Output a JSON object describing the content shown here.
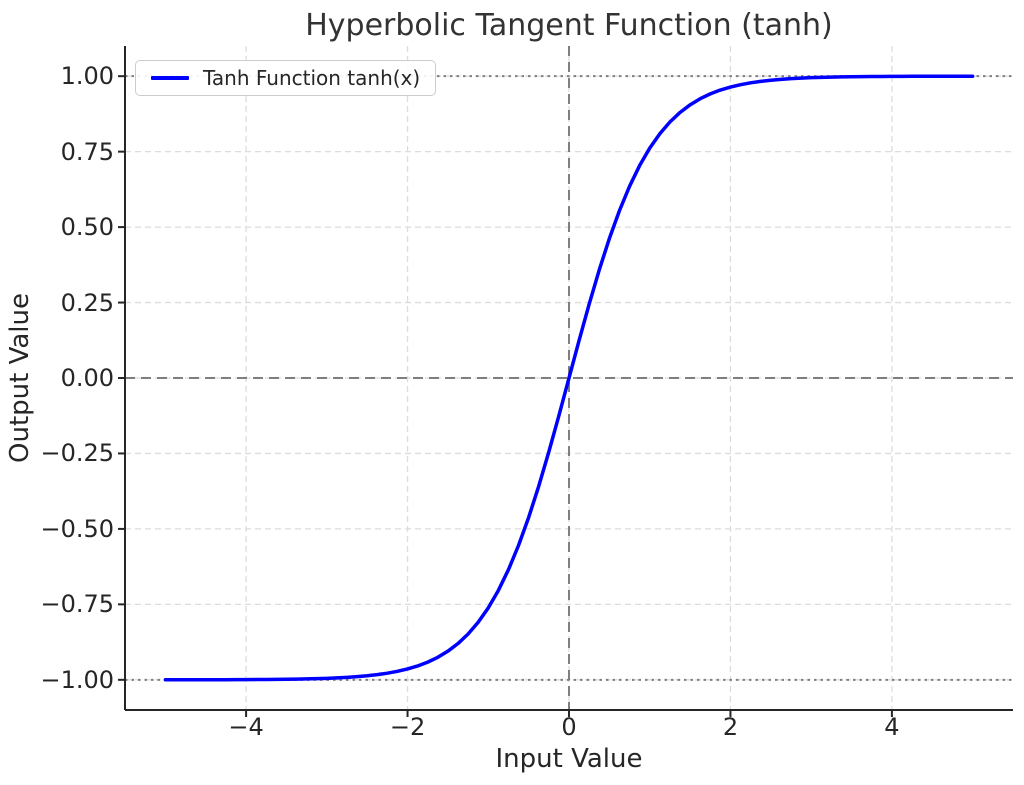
{
  "chart_data": {
    "type": "line",
    "title": "Hyperbolic Tangent Function (tanh)",
    "xlabel": "Input Value",
    "ylabel": "Output Value",
    "xlim": [
      -5.5,
      5.5
    ],
    "ylim": [
      -1.1,
      1.1
    ],
    "grid": true,
    "grid_style": "dashed",
    "legend_position": "upper left",
    "xticks": [
      {
        "value": -4,
        "label": "−4"
      },
      {
        "value": -2,
        "label": "−2"
      },
      {
        "value": 0,
        "label": "0"
      },
      {
        "value": 2,
        "label": "2"
      },
      {
        "value": 4,
        "label": "4"
      }
    ],
    "yticks": [
      {
        "value": 1,
        "label": "1.00"
      },
      {
        "value": 0.75,
        "label": "0.75"
      },
      {
        "value": 0.5,
        "label": "0.50"
      },
      {
        "value": 0.25,
        "label": "0.25"
      },
      {
        "value": 0,
        "label": "0.00"
      },
      {
        "value": -0.25,
        "label": "−0.25"
      },
      {
        "value": -0.5,
        "label": "−0.50"
      },
      {
        "value": -0.75,
        "label": "−0.75"
      },
      {
        "value": -1,
        "label": "−1.00"
      }
    ],
    "reference_lines": [
      {
        "orientation": "vertical",
        "value": 0,
        "style": "dashed",
        "color": "#7f7f7f"
      },
      {
        "orientation": "horizontal",
        "value": 0,
        "style": "dashed",
        "color": "#7f7f7f"
      },
      {
        "orientation": "horizontal",
        "value": 1,
        "style": "dotted",
        "color": "#7f7f7f"
      },
      {
        "orientation": "horizontal",
        "value": -1,
        "style": "dotted",
        "color": "#7f7f7f"
      }
    ],
    "series": [
      {
        "name": "Tanh Function tanh(x)",
        "color": "#0000ff",
        "x": [
          -5,
          -4.875,
          -4.75,
          -4.625,
          -4.5,
          -4.375,
          -4.25,
          -4.125,
          -4,
          -3.875,
          -3.75,
          -3.625,
          -3.5,
          -3.375,
          -3.25,
          -3.125,
          -3,
          -2.875,
          -2.75,
          -2.625,
          -2.5,
          -2.375,
          -2.25,
          -2.125,
          -2,
          -1.875,
          -1.75,
          -1.625,
          -1.5,
          -1.375,
          -1.25,
          -1.125,
          -1,
          -0.875,
          -0.75,
          -0.625,
          -0.5,
          -0.375,
          -0.25,
          -0.125,
          0,
          0.125,
          0.25,
          0.375,
          0.5,
          0.625,
          0.75,
          0.875,
          1,
          1.125,
          1.25,
          1.375,
          1.5,
          1.625,
          1.75,
          1.875,
          2,
          2.125,
          2.25,
          2.375,
          2.5,
          2.625,
          2.75,
          2.875,
          3,
          3.125,
          3.25,
          3.375,
          3.5,
          3.625,
          3.75,
          3.875,
          4,
          4.125,
          4.25,
          4.375,
          4.5,
          4.625,
          4.75,
          4.875,
          5
        ],
        "y": [
          -0.9999,
          -0.9999,
          -0.9999,
          -0.9998,
          -0.9998,
          -0.9997,
          -0.9996,
          -0.9995,
          -0.9993,
          -0.9991,
          -0.9989,
          -0.9986,
          -0.9982,
          -0.9977,
          -0.997,
          -0.9962,
          -0.9951,
          -0.9937,
          -0.9919,
          -0.9896,
          -0.9866,
          -0.9828,
          -0.978,
          -0.9719,
          -0.964,
          -0.9541,
          -0.9414,
          -0.9254,
          -0.9051,
          -0.8798,
          -0.8483,
          -0.8093,
          -0.7616,
          -0.7039,
          -0.6351,
          -0.5546,
          -0.4621,
          -0.3584,
          -0.2449,
          -0.1244,
          0,
          0.1244,
          0.2449,
          0.3584,
          0.4621,
          0.5546,
          0.6351,
          0.7039,
          0.7616,
          0.8093,
          0.8483,
          0.8798,
          0.9051,
          0.9254,
          0.9414,
          0.9541,
          0.964,
          0.9719,
          0.978,
          0.9828,
          0.9866,
          0.9896,
          0.9919,
          0.9937,
          0.9951,
          0.9962,
          0.997,
          0.9977,
          0.9982,
          0.9986,
          0.9989,
          0.9991,
          0.9993,
          0.9995,
          0.9996,
          0.9997,
          0.9998,
          0.9998,
          0.9999,
          0.9999,
          0.9999
        ]
      }
    ],
    "colors": {
      "curve": "#0000ff",
      "reference": "#7f7f7f",
      "grid": "#dcdcdc",
      "spine": "#262626",
      "text": "#262626"
    }
  },
  "legend": {
    "label": "Tanh Function tanh(x)"
  }
}
